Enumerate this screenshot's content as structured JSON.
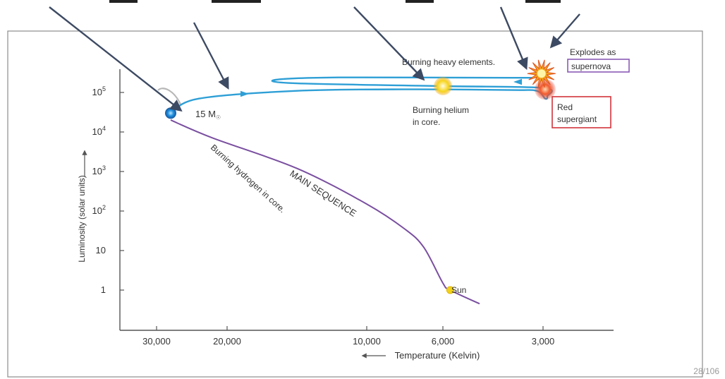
{
  "page": {
    "page_number": "28/106"
  },
  "colors": {
    "main_sequence": "#7a4fa0",
    "track": "#2e9fd6",
    "pointer_arrow": "#3d4a63",
    "red_box": "#d0343a",
    "purple_box": "#8a5ab5",
    "axis": "#555555",
    "star_blue": "#1e8fdc",
    "sun_yellow": "#f3d21a",
    "red_giant": "#e03a2a"
  },
  "chart_data": {
    "type": "line",
    "title": "",
    "xlabel": "Temperature (Kelvin)",
    "ylabel": "Luminosity (solar units)",
    "x_axis": {
      "reversed": true,
      "ticks": [
        30000,
        20000,
        10000,
        6000,
        3000
      ],
      "tick_labels": [
        "30,000",
        "20,000",
        "10,000",
        "6,000",
        "3,000"
      ]
    },
    "y_axis": {
      "scale": "log",
      "ticks": [
        1,
        10,
        100,
        1000,
        10000,
        100000
      ],
      "tick_labels": [
        {
          "base": "1",
          "exp": ""
        },
        {
          "base": "10",
          "exp": ""
        },
        {
          "base": "10",
          "exp": "2"
        },
        {
          "base": "10",
          "exp": "3"
        },
        {
          "base": "10",
          "exp": "4"
        },
        {
          "base": "10",
          "exp": "5"
        }
      ]
    },
    "series": [
      {
        "name": "MAIN SEQUENCE",
        "points": [
          [
            28000,
            20000
          ],
          [
            22000,
            7000
          ],
          [
            15000,
            1200
          ],
          [
            10000,
            150
          ],
          [
            8000,
            35
          ],
          [
            7000,
            12
          ],
          [
            6000,
            1.5
          ],
          [
            5800,
            1
          ],
          [
            5000,
            0.45
          ]
        ]
      },
      {
        "name": "",
        "points": [
          [
            28000,
            30000
          ],
          [
            24000,
            70000
          ],
          [
            15000,
            110000
          ],
          [
            8000,
            120000
          ],
          [
            4000,
            115000
          ],
          [
            3200,
            110000
          ],
          [
            2950,
            70000
          ],
          [
            2900,
            80000
          ],
          [
            3000,
            130000
          ],
          [
            6000,
            145000
          ],
          [
            15000,
            170000
          ],
          [
            16500,
            210000
          ],
          [
            12000,
            240000
          ],
          [
            4000,
            235000
          ],
          [
            3300,
            240000
          ],
          [
            3200,
            260000
          ],
          [
            3050,
            300000
          ]
        ]
      }
    ],
    "markers": {
      "star": {
        "label_base": "15 M",
        "label_sub": "☉",
        "x": 28000,
        "y": 30000
      },
      "sun": {
        "label": "Sun",
        "x": 5800,
        "y": 1
      },
      "helium": {
        "x": 6000,
        "y": 145000
      },
      "red_supergiant": {
        "x": 2950,
        "y": 120000
      },
      "supernova": {
        "x": 3050,
        "y": 300000
      }
    },
    "annotations": {
      "main_sequence": "MAIN SEQUENCE",
      "hydrogen": "Burning hydrogen in core.",
      "helium_line1": "Burning helium",
      "helium_line2": "in core.",
      "heavy": "Burning heavy elements.",
      "explodes": "Explodes as",
      "supernova": "supernova",
      "red_line1": "Red",
      "red_line2": "supergiant"
    },
    "grid": false,
    "legend": "none"
  }
}
